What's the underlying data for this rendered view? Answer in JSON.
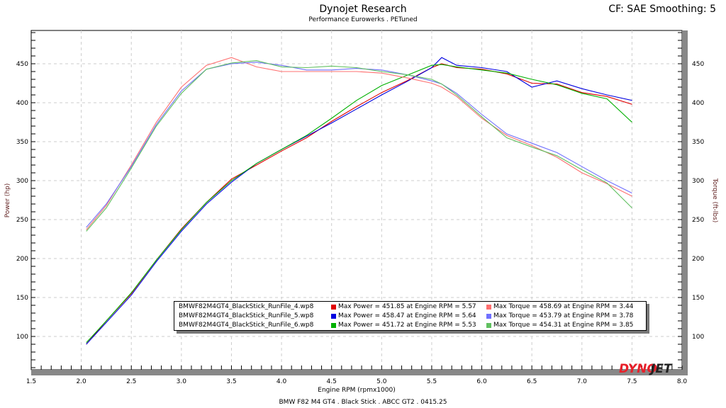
{
  "header": {
    "title": "Dynojet Research",
    "subtitle": "Performance Eurowerks . PETuned",
    "cf": "CF: SAE Smoothing: 5"
  },
  "footer": "BMW F82 M4 GT4 . Black Stick . ABCC GT2 . 0415.25",
  "logo": "DYNOJET",
  "chart_data": {
    "type": "line",
    "xlabel": "Engine RPM (rpmx1000)",
    "ylabel": "Power (hp)",
    "y2label": "Torque (ft-lbs)",
    "xlim": [
      1.5,
      8.0
    ],
    "ylim": [
      55,
      493
    ],
    "y2lim": [
      55,
      493
    ],
    "xticks": [
      "1.5",
      "2.0",
      "2.5",
      "3.0",
      "3.5",
      "4.0",
      "4.5",
      "5.0",
      "5.5",
      "6.0",
      "6.5",
      "7.0",
      "7.5",
      "8.0"
    ],
    "yticks": [
      "100",
      "150",
      "200",
      "250",
      "300",
      "350",
      "400",
      "450"
    ],
    "grid": true,
    "x": [
      2.05,
      2.25,
      2.5,
      2.75,
      3.0,
      3.25,
      3.5,
      3.75,
      4.0,
      4.25,
      4.5,
      4.75,
      5.0,
      5.25,
      5.5,
      5.6,
      5.75,
      6.0,
      6.25,
      6.5,
      6.75,
      7.0,
      7.25,
      7.5
    ],
    "series": [
      {
        "name": "BMWF82M4GT4_BlackStick_RunFile_4.wp8",
        "kind": "power",
        "color": "#e00000",
        "label": "Max Power = 451.85 at Engine RPM = 5.57",
        "values": [
          90,
          120,
          155,
          198,
          238,
          272,
          302,
          320,
          338,
          355,
          376,
          395,
          413,
          428,
          445,
          450,
          445,
          443,
          437,
          425,
          424,
          413,
          408,
          398
        ]
      },
      {
        "name": "BMWF82M4GT4_BlackStick_RunFile_5.wp8",
        "kind": "power",
        "color": "#0000e0",
        "label": "Max Power = 458.47 at Engine RPM = 5.64",
        "values": [
          90,
          118,
          153,
          196,
          235,
          270,
          298,
          322,
          340,
          357,
          374,
          392,
          410,
          427,
          445,
          458,
          448,
          445,
          440,
          420,
          428,
          418,
          410,
          403
        ]
      },
      {
        "name": "BMWF82M4GT4_BlackStick_RunFile_6.wp8",
        "kind": "power",
        "color": "#00b000",
        "label": "Max Power = 451.72 at Engine RPM = 5.53",
        "values": [
          92,
          120,
          156,
          198,
          237,
          272,
          300,
          322,
          340,
          358,
          380,
          403,
          422,
          435,
          448,
          449,
          446,
          442,
          438,
          430,
          423,
          412,
          405,
          375
        ]
      },
      {
        "name": "BMWF82M4GT4_BlackStick_RunFile_4.wp8",
        "kind": "torque",
        "color": "#ff7070",
        "label": "Max Torque = 458.69 at Engine RPM = 3.44",
        "values": [
          237,
          268,
          320,
          375,
          420,
          448,
          458,
          446,
          440,
          440,
          440,
          440,
          438,
          432,
          425,
          420,
          408,
          380,
          358,
          345,
          330,
          310,
          296,
          280
        ]
      },
      {
        "name": "BMWF82M4GT4_BlackStick_RunFile_5.wp8",
        "kind": "torque",
        "color": "#7070ff",
        "label": "Max Torque = 453.79 at Engine RPM = 3.78",
        "values": [
          240,
          270,
          318,
          372,
          415,
          443,
          450,
          452,
          448,
          442,
          442,
          444,
          442,
          436,
          428,
          424,
          412,
          385,
          360,
          348,
          336,
          318,
          300,
          284
        ]
      },
      {
        "name": "BMWF82M4GT4_BlackStick_RunFile_6.wp8",
        "kind": "torque",
        "color": "#60c060",
        "label": "Max Torque = 454.31 at Engine RPM = 3.85",
        "values": [
          235,
          265,
          316,
          370,
          412,
          443,
          451,
          454,
          446,
          445,
          447,
          445,
          440,
          436,
          430,
          424,
          410,
          382,
          355,
          343,
          332,
          314,
          297,
          265
        ]
      }
    ]
  }
}
